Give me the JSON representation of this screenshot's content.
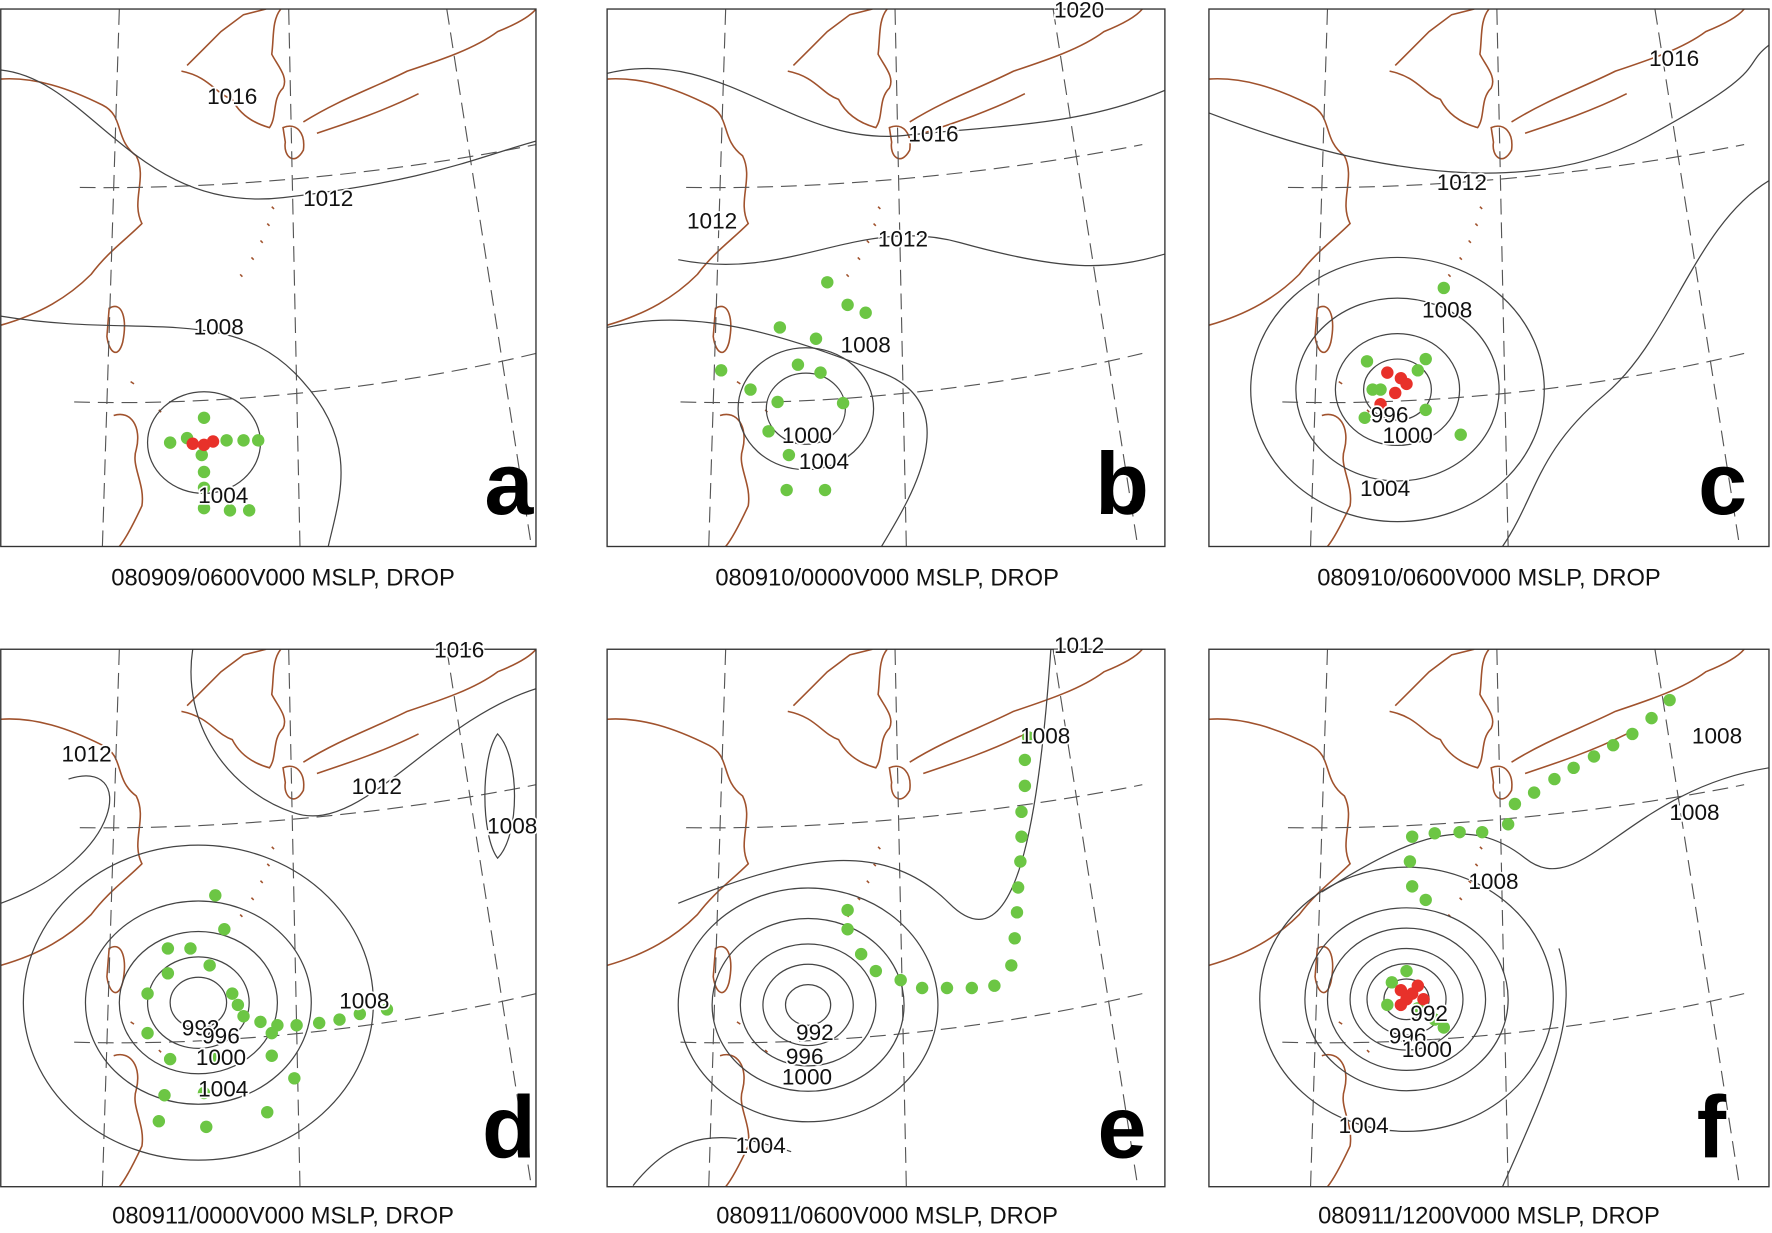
{
  "panels": [
    {
      "letter": "a",
      "caption": "080909/0600V000 MSLP, DROP",
      "contour_labels": [
        1016,
        1012,
        1008,
        1004
      ]
    },
    {
      "letter": "b",
      "caption": "080910/0000V000 MSLP, DROP",
      "contour_labels": [
        1020,
        1016,
        1012,
        1012,
        1008,
        1000,
        1004
      ]
    },
    {
      "letter": "c",
      "caption": "080910/0600V000 MSLP, DROP",
      "contour_labels": [
        1016,
        1012,
        1008,
        996,
        1000,
        1004
      ]
    },
    {
      "letter": "d",
      "caption": "080911/0000V000 MSLP, DROP",
      "contour_labels": [
        1016,
        1012,
        1012,
        1008,
        1008,
        992,
        996,
        1000,
        1004
      ]
    },
    {
      "letter": "e",
      "caption": "080911/0600V000 MSLP, DROP",
      "contour_labels": [
        1012,
        1008,
        992,
        996,
        1000,
        1004
      ]
    },
    {
      "letter": "f",
      "caption": "080911/1200V000 MSLP, DROP",
      "contour_labels": [
        1008,
        1008,
        1008,
        992,
        996,
        1000,
        1004
      ]
    }
  ]
}
